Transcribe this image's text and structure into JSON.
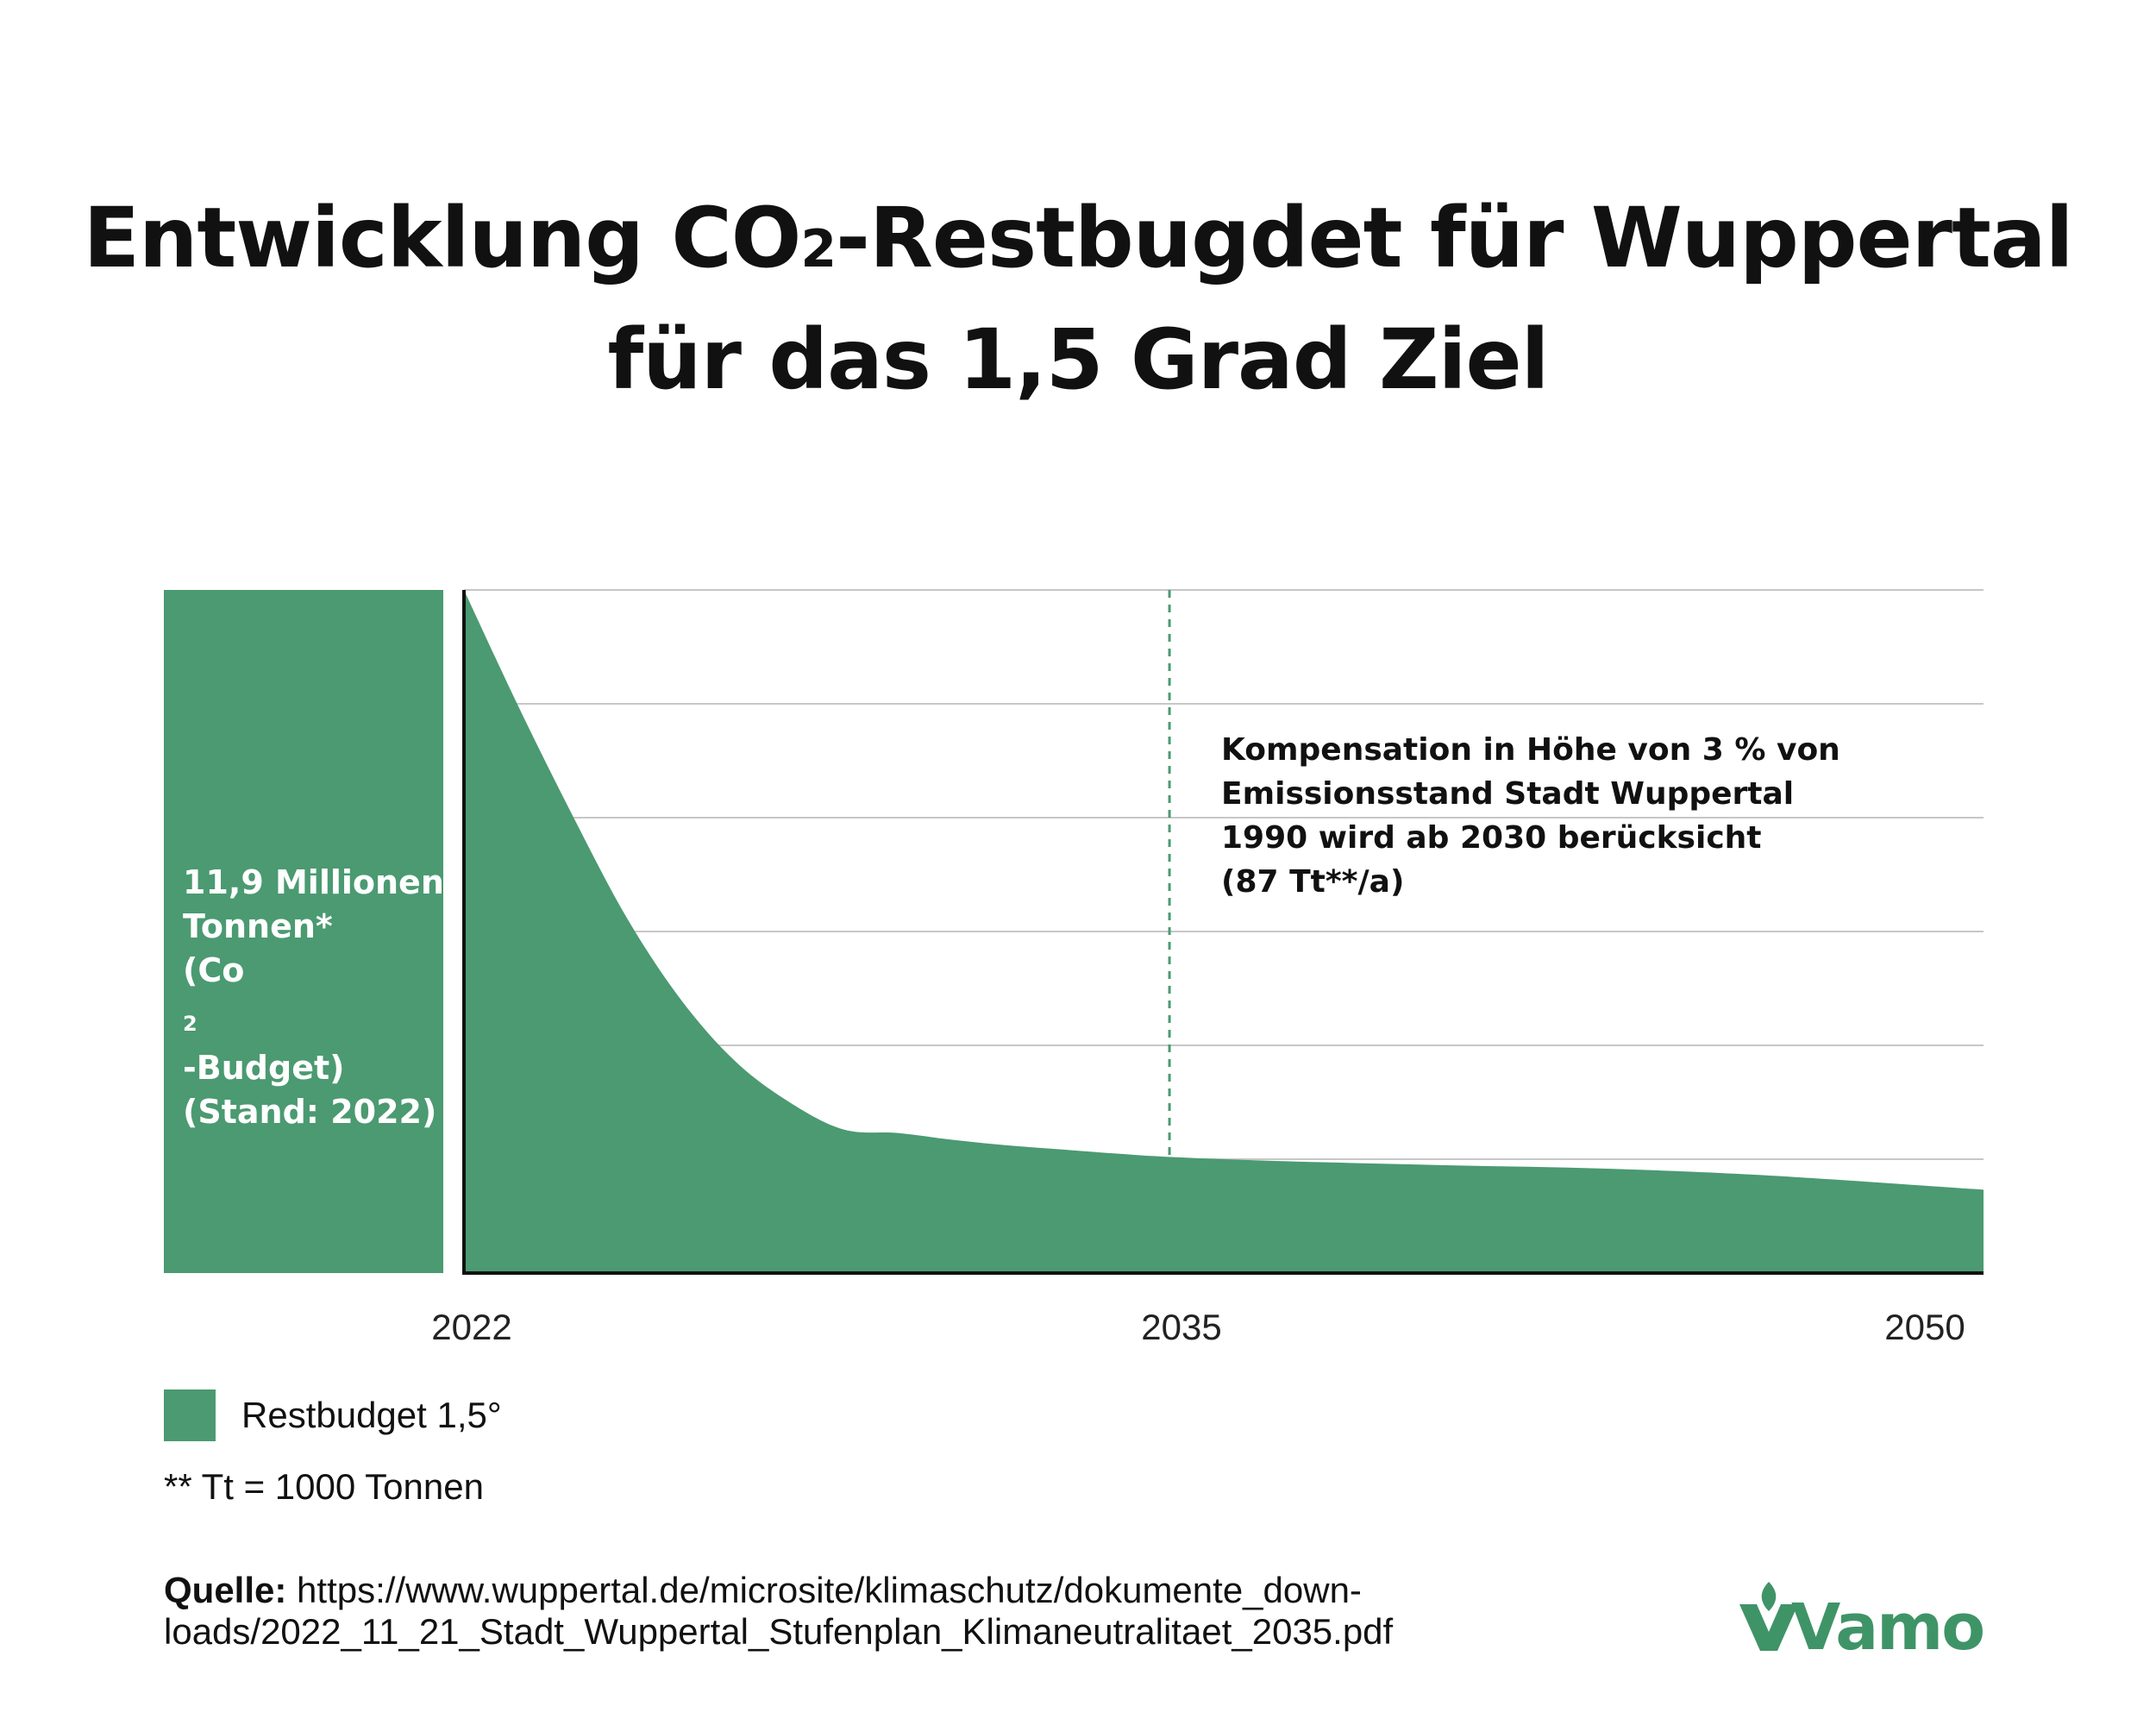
{
  "title": {
    "line1_pre": "Entwicklung CO",
    "line1_sub": "2",
    "line1_post": "-Restbugdet für Wuppertal",
    "line2": "für das 1,5 Grad Ziel"
  },
  "chart_data": {
    "type": "area",
    "x_ticks": [
      "2022",
      "2035",
      "2050"
    ],
    "xlim": [
      2022,
      2050
    ],
    "grid": true,
    "gridlines_y": 6,
    "series": [
      {
        "name": "Restbudget 1,5°",
        "color": "#4b9a71",
        "points_relative": [
          [
            2022.0,
            1.0
          ],
          [
            2023.0,
            0.83
          ],
          [
            2024.0,
            0.67
          ],
          [
            2025.0,
            0.52
          ],
          [
            2026.0,
            0.4
          ],
          [
            2027.0,
            0.31
          ],
          [
            2028.0,
            0.25
          ],
          [
            2029.0,
            0.21
          ],
          [
            2030.0,
            0.205
          ],
          [
            2031.0,
            0.195
          ],
          [
            2032.0,
            0.187
          ],
          [
            2033.0,
            0.181
          ],
          [
            2034.0,
            0.175
          ],
          [
            2035.0,
            0.17
          ],
          [
            2037.0,
            0.164
          ],
          [
            2040.0,
            0.158
          ],
          [
            2043.0,
            0.153
          ],
          [
            2046.0,
            0.143
          ],
          [
            2050.0,
            0.122
          ]
        ]
      }
    ],
    "budget_box": {
      "lines": [
        "11,9 Millionen",
        "Tonnen*",
        "(Co",
        "-Budget)",
        "(Stand: 2022)"
      ],
      "sub": "2",
      "color": "#4b9a71"
    },
    "marker_line": {
      "x": 2035,
      "style": "dashed",
      "color": "#4b9a71"
    },
    "annotation": [
      "Kompensation in Höhe von 3 % von",
      "Emissionsstand Stadt Wuppertal",
      "1990 wird ab 2030 berücksicht",
      "(87 Tt**/a)"
    ]
  },
  "legend": {
    "label": "Restbudget 1,5°",
    "color": "#4b9a71"
  },
  "footnote": "** Tt = 1000 Tonnen",
  "source": {
    "label": "Quelle:",
    "line1": " https://www.wuppertal.de/microsite/klimaschutz/dokumente_down-",
    "line2": "loads/2022_11_21_Stadt_Wuppertal_Stufenplan_Klimaneutralitaet_2035.pdf"
  },
  "logo": {
    "text": "Vamo",
    "color": "#3f9467",
    "icon": "leaf-v-logo-icon"
  }
}
